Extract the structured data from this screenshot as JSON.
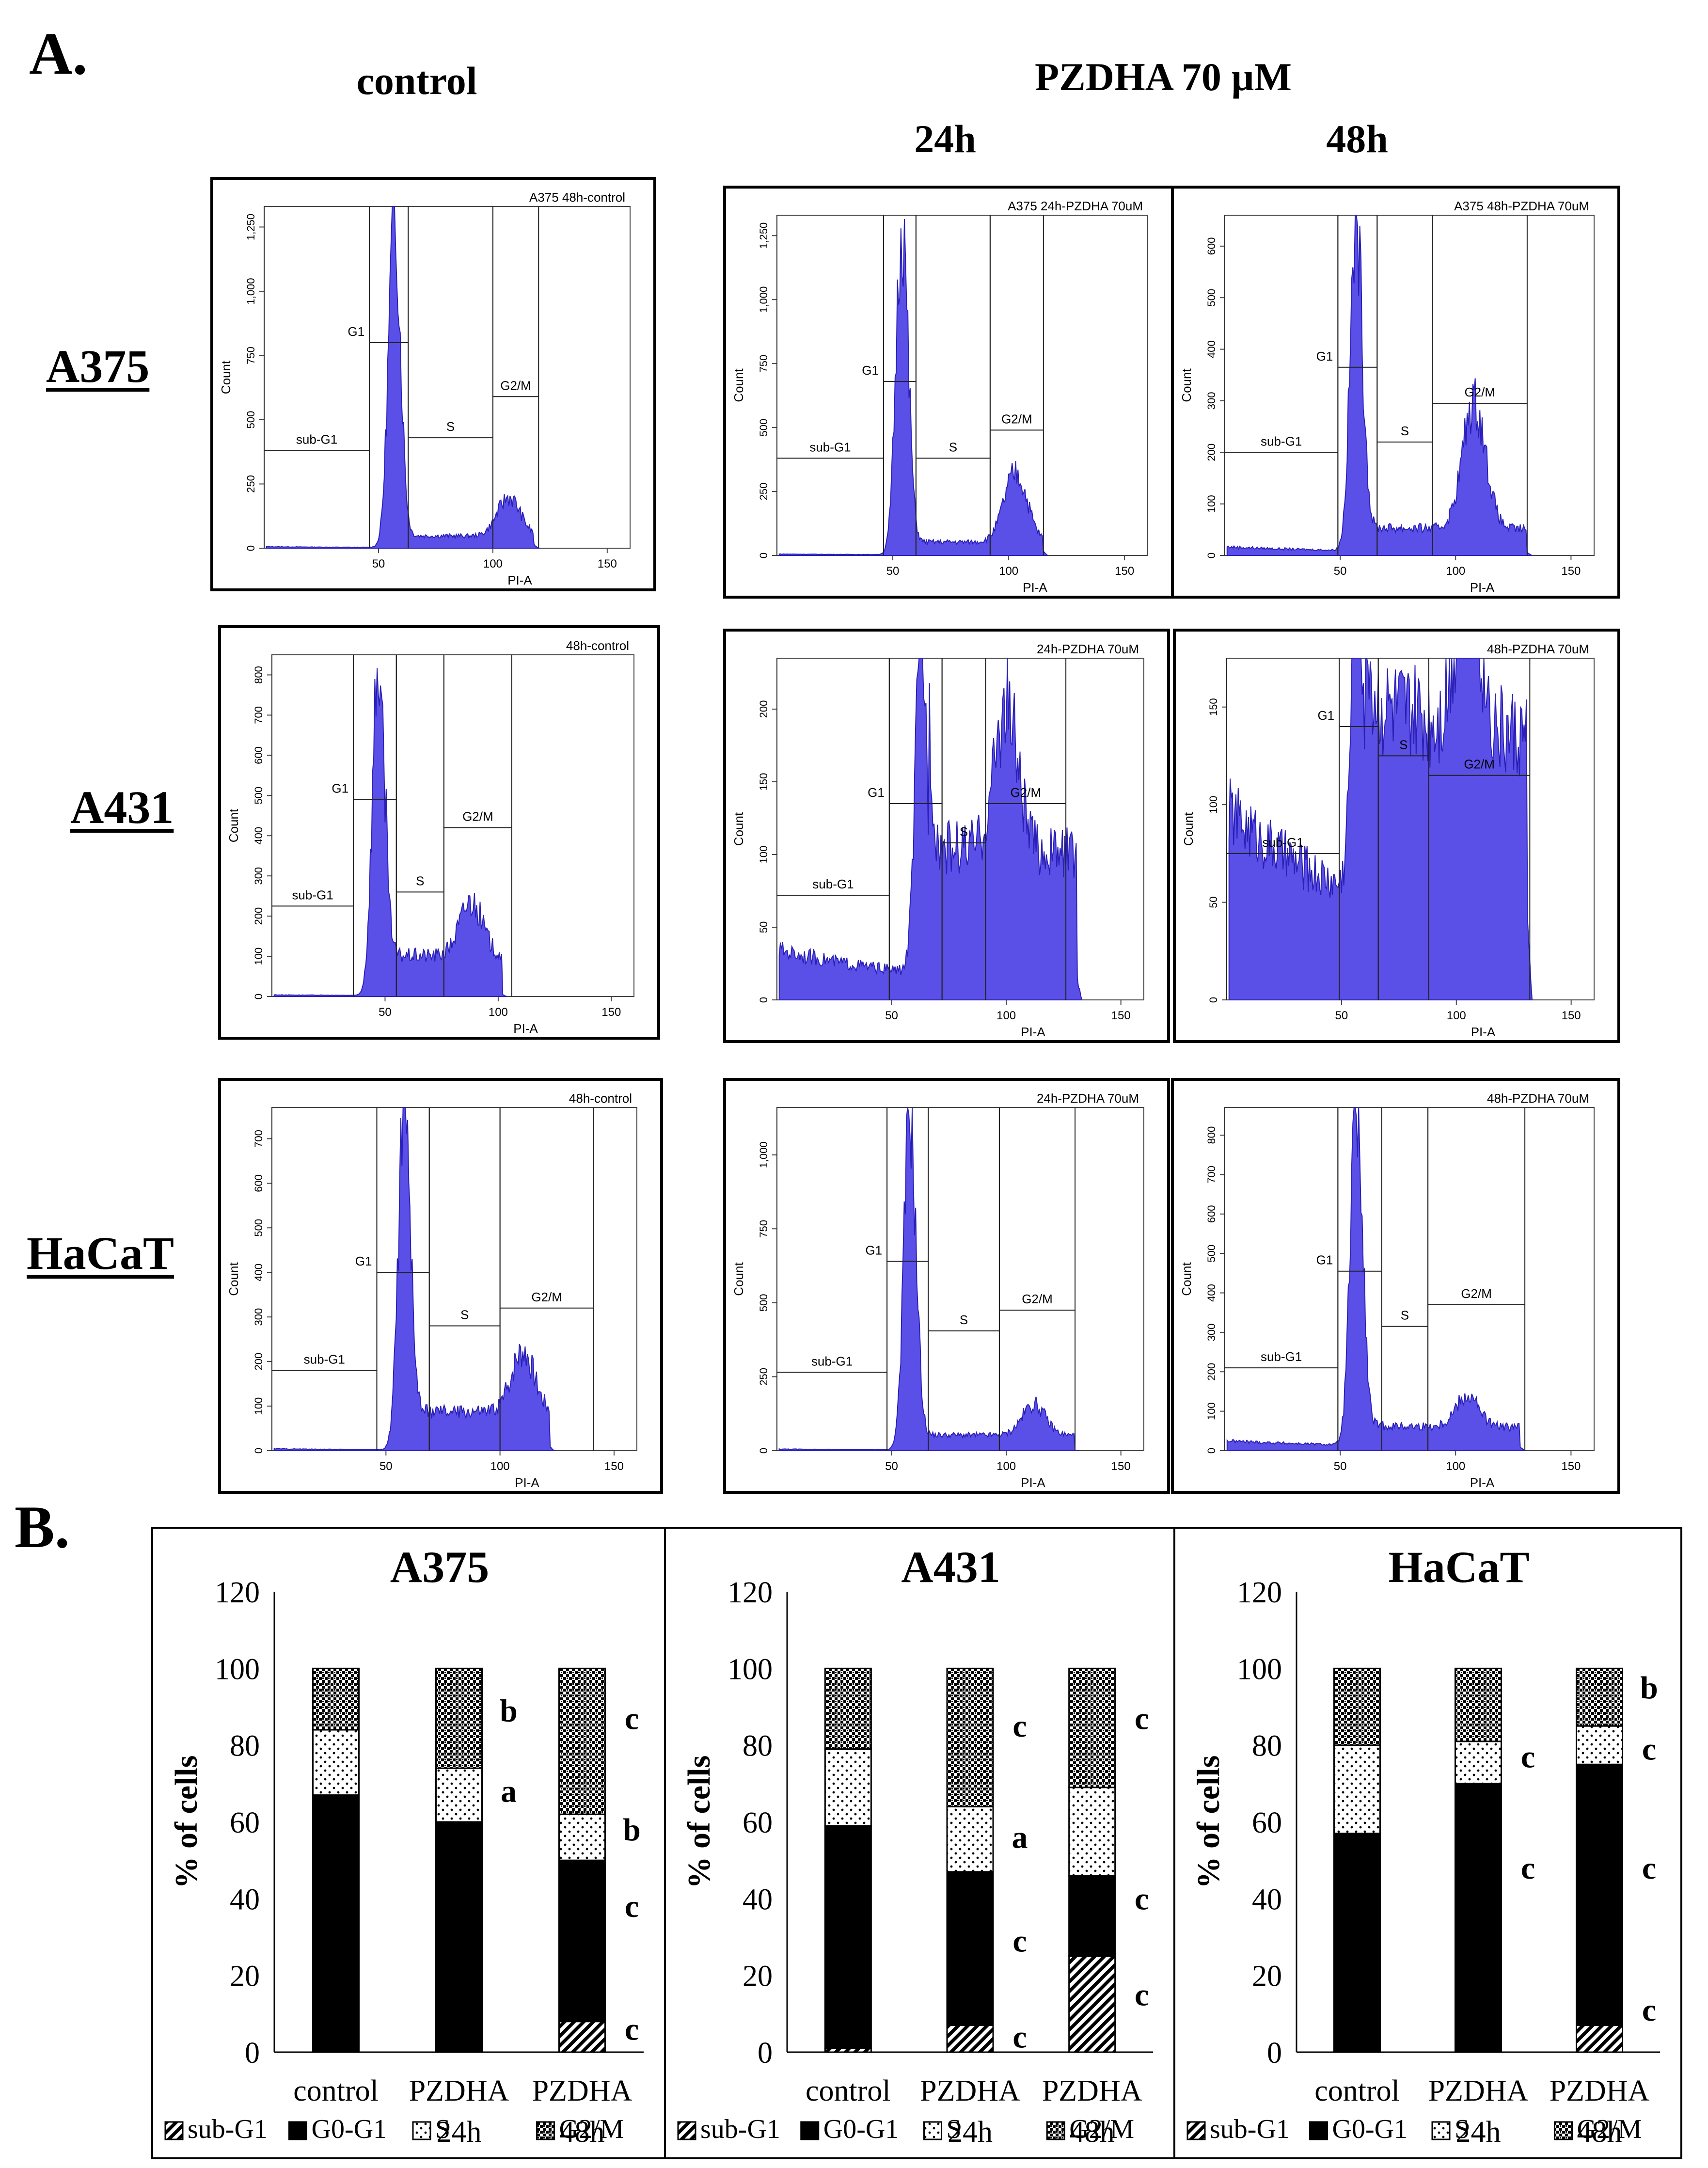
{
  "panel_labels": {
    "a": "A.",
    "b": "B."
  },
  "headers": {
    "control": "control",
    "treatment": "PZDHA 70 µM",
    "t24": "24h",
    "t48": "48h"
  },
  "row_labels": [
    "A375",
    "A431",
    "HaCaT"
  ],
  "colors": {
    "histogram_fill": "#5a4fe6",
    "histogram_stroke": "#2a20b8"
  },
  "chart_data": [
    {
      "type": "area",
      "cell_line": "A375",
      "condition": "control",
      "title": "A375 48h-control",
      "xlabel": "PI-A",
      "ylabel": "Count",
      "xlim": [
        0,
        160
      ],
      "ylim": [
        0,
        1330
      ],
      "xticks": [
        50,
        100,
        150
      ],
      "yticks": [
        0,
        250,
        500,
        750,
        1000,
        1250
      ],
      "ytick_labels": [
        "0",
        "250",
        "500",
        "750",
        "1,000",
        "1,250"
      ],
      "gates": [
        {
          "label": "sub-G1",
          "x": [
            0,
            46
          ],
          "y": 380
        },
        {
          "label": "G1",
          "x": [
            46,
            63
          ],
          "y": 800
        },
        {
          "label": "S",
          "x": [
            63,
            100
          ],
          "y": 430
        },
        {
          "label": "G2/M",
          "x": [
            100,
            120
          ],
          "y": 590
        }
      ],
      "peaks": {
        "g1": 57,
        "g1h": 1300,
        "s": 45,
        "g2": 107,
        "g2h": 150,
        "sub": 4,
        "end": 118
      }
    },
    {
      "type": "area",
      "cell_line": "A375",
      "condition": "PZDHA 70 µM 24h",
      "title": "A375 24h-PZDHA 70uM",
      "xlabel": "PI-A",
      "ylabel": "Count",
      "xlim": [
        0,
        160
      ],
      "ylim": [
        0,
        1330
      ],
      "xticks": [
        50,
        100,
        150
      ],
      "yticks": [
        0,
        250,
        500,
        750,
        1000,
        1250
      ],
      "ytick_labels": [
        "0",
        "250",
        "500",
        "750",
        "1,000",
        "1,250"
      ],
      "gates": [
        {
          "label": "sub-G1",
          "x": [
            0,
            46
          ],
          "y": 380
        },
        {
          "label": "G1",
          "x": [
            46,
            60
          ],
          "y": 680
        },
        {
          "label": "S",
          "x": [
            60,
            92
          ],
          "y": 380
        },
        {
          "label": "G2/M",
          "x": [
            92,
            115
          ],
          "y": 490
        }
      ],
      "peaks": {
        "g1": 54,
        "g1h": 1300,
        "s": 50,
        "g2": 103,
        "g2h": 270,
        "sub": 4,
        "end": 115
      }
    },
    {
      "type": "area",
      "cell_line": "A375",
      "condition": "PZDHA 70 µM 48h",
      "title": "A375 48h-PZDHA 70uM",
      "xlabel": "PI-A",
      "ylabel": "Count",
      "xlim": [
        0,
        160
      ],
      "ylim": [
        0,
        660
      ],
      "xticks": [
        50,
        100,
        150
      ],
      "yticks": [
        0,
        100,
        200,
        300,
        400,
        500,
        600
      ],
      "ytick_labels": [
        "0",
        "100",
        "200",
        "300",
        "400",
        "500",
        "600"
      ],
      "gates": [
        {
          "label": "sub-G1",
          "x": [
            0,
            49
          ],
          "y": 200
        },
        {
          "label": "G1",
          "x": [
            49,
            66
          ],
          "y": 365
        },
        {
          "label": "S",
          "x": [
            66,
            90
          ],
          "y": 220
        },
        {
          "label": "G2/M",
          "x": [
            90,
            131
          ],
          "y": 295
        }
      ],
      "peaks": {
        "g1": 57,
        "g1h": 650,
        "s": 45,
        "g2": 108,
        "g2h": 245,
        "sub": 12,
        "end": 131
      }
    },
    {
      "type": "area",
      "cell_line": "A431",
      "condition": "control",
      "title": "48h-control",
      "xlabel": "PI-A",
      "ylabel": "Count",
      "xlim": [
        0,
        160
      ],
      "ylim": [
        0,
        850
      ],
      "xticks": [
        50,
        100,
        150
      ],
      "yticks": [
        0,
        100,
        200,
        300,
        400,
        500,
        600,
        700,
        800
      ],
      "ytick_labels": [
        "0",
        "100",
        "200",
        "300",
        "400",
        "500",
        "600",
        "700",
        "800"
      ],
      "gates": [
        {
          "label": "sub-G1",
          "x": [
            0,
            36
          ],
          "y": 225
        },
        {
          "label": "G1",
          "x": [
            36,
            55
          ],
          "y": 490
        },
        {
          "label": "S",
          "x": [
            55,
            76
          ],
          "y": 260
        },
        {
          "label": "G2/M",
          "x": [
            76,
            106
          ],
          "y": 420
        }
      ],
      "peaks": {
        "g1": 47,
        "g1h": 830,
        "s": 100,
        "g2": 88,
        "g2h": 135,
        "sub": 3,
        "end": 102
      }
    },
    {
      "type": "area",
      "cell_line": "A431",
      "condition": "PZDHA 70 µM 24h",
      "title": "24h-PZDHA 70uM",
      "xlabel": "PI-A",
      "ylabel": "Count",
      "xlim": [
        0,
        160
      ],
      "ylim": [
        0,
        235
      ],
      "xticks": [
        50,
        100,
        150
      ],
      "yticks": [
        0,
        50,
        100,
        150,
        200
      ],
      "ytick_labels": [
        "0",
        "50",
        "100",
        "150",
        "200"
      ],
      "gates": [
        {
          "label": "sub-G1",
          "x": [
            0,
            49
          ],
          "y": 72
        },
        {
          "label": "G1",
          "x": [
            49,
            72
          ],
          "y": 135
        },
        {
          "label": "S",
          "x": [
            72,
            91
          ],
          "y": 108
        },
        {
          "label": "G2/M",
          "x": [
            91,
            126
          ],
          "y": 135
        }
      ],
      "peaks": {
        "g1": 63,
        "g1h": 228,
        "s": 88,
        "g2": 100,
        "g2h": 100,
        "sub": 25,
        "end": 131
      }
    },
    {
      "type": "area",
      "cell_line": "A431",
      "condition": "PZDHA 70 µM 48h",
      "title": "48h-PZDHA 70uM",
      "xlabel": "PI-A",
      "ylabel": "Count",
      "xlim": [
        0,
        160
      ],
      "ylim": [
        0,
        175
      ],
      "xticks": [
        50,
        100,
        150
      ],
      "yticks": [
        0,
        50,
        100,
        150
      ],
      "ytick_labels": [
        "0",
        "50",
        "100",
        "150"
      ],
      "gates": [
        {
          "label": "sub-G1",
          "x": [
            0,
            49
          ],
          "y": 75
        },
        {
          "label": "G1",
          "x": [
            49,
            66
          ],
          "y": 140
        },
        {
          "label": "S",
          "x": [
            66,
            88
          ],
          "y": 125
        },
        {
          "label": "G2/M",
          "x": [
            88,
            132
          ],
          "y": 115
        }
      ],
      "peaks": {
        "g1": 57,
        "g1h": 170,
        "s": 100,
        "g2": 105,
        "g2h": 90,
        "sub": 70,
        "end": 131
      }
    },
    {
      "type": "area",
      "cell_line": "HaCaT",
      "condition": "control",
      "title": "48h-control",
      "xlabel": "PI-A",
      "ylabel": "Count",
      "xlim": [
        0,
        160
      ],
      "ylim": [
        0,
        770
      ],
      "xticks": [
        50,
        100,
        150
      ],
      "yticks": [
        0,
        100,
        200,
        300,
        400,
        500,
        600,
        700
      ],
      "ytick_labels": [
        "0",
        "100",
        "200",
        "300",
        "400",
        "500",
        "600",
        "700"
      ],
      "gates": [
        {
          "label": "sub-G1",
          "x": [
            0,
            46
          ],
          "y": 180
        },
        {
          "label": "G1",
          "x": [
            46,
            69
          ],
          "y": 400
        },
        {
          "label": "S",
          "x": [
            69,
            100
          ],
          "y": 280
        },
        {
          "label": "G2/M",
          "x": [
            100,
            141
          ],
          "y": 320
        }
      ],
      "peaks": {
        "g1": 58,
        "g1h": 760,
        "s": 85,
        "g2": 110,
        "g2h": 140,
        "sub": 3,
        "end": 122
      }
    },
    {
      "type": "area",
      "cell_line": "HaCaT",
      "condition": "PZDHA 70 µM 24h",
      "title": "24h-PZDHA 70uM",
      "xlabel": "PI-A",
      "ylabel": "Count",
      "xlim": [
        0,
        160
      ],
      "ylim": [
        0,
        1160
      ],
      "xticks": [
        50,
        100,
        150
      ],
      "yticks": [
        0,
        250,
        500,
        750,
        1000
      ],
      "ytick_labels": [
        "0",
        "250",
        "500",
        "750",
        "1,000"
      ],
      "gates": [
        {
          "label": "sub-G1",
          "x": [
            0,
            48
          ],
          "y": 265
        },
        {
          "label": "G1",
          "x": [
            48,
            66
          ],
          "y": 640
        },
        {
          "label": "S",
          "x": [
            66,
            97
          ],
          "y": 405
        },
        {
          "label": "G2/M",
          "x": [
            97,
            130
          ],
          "y": 475
        }
      ],
      "peaks": {
        "g1": 58,
        "g1h": 1150,
        "s": 50,
        "g2": 112,
        "g2h": 105,
        "sub": 4,
        "end": 130
      }
    },
    {
      "type": "area",
      "cell_line": "HaCaT",
      "condition": "PZDHA 70 µM 48h",
      "title": "48h-PZDHA 70uM",
      "xlabel": "PI-A",
      "ylabel": "Count",
      "xlim": [
        0,
        160
      ],
      "ylim": [
        0,
        870
      ],
      "xticks": [
        50,
        100,
        150
      ],
      "yticks": [
        0,
        100,
        200,
        300,
        400,
        500,
        600,
        700,
        800
      ],
      "ytick_labels": [
        "0",
        "100",
        "200",
        "300",
        "400",
        "500",
        "600",
        "700",
        "800"
      ],
      "gates": [
        {
          "label": "sub-G1",
          "x": [
            0,
            49
          ],
          "y": 210
        },
        {
          "label": "G1",
          "x": [
            49,
            68
          ],
          "y": 455
        },
        {
          "label": "S",
          "x": [
            68,
            88
          ],
          "y": 315
        },
        {
          "label": "G2/M",
          "x": [
            88,
            130
          ],
          "y": 370
        }
      ],
      "peaks": {
        "g1": 57,
        "g1h": 860,
        "s": 50,
        "g2": 105,
        "g2h": 80,
        "sub": 18,
        "end": 128
      }
    },
    {
      "type": "bar",
      "stacked": true,
      "title": "A375",
      "categories": [
        "control",
        "PZDHA 24h",
        "PZDHA 48h"
      ],
      "ylabel": "% of cells",
      "ylim": [
        0,
        120
      ],
      "yticks": [
        0,
        20,
        40,
        60,
        80,
        100,
        120
      ],
      "series": [
        {
          "name": "sub-G1",
          "values": [
            0,
            0,
            8
          ],
          "pattern": "diag"
        },
        {
          "name": "G0-G1",
          "values": [
            67,
            60,
            42
          ],
          "pattern": "solid"
        },
        {
          "name": "S",
          "values": [
            17,
            14,
            12
          ],
          "pattern": "dots"
        },
        {
          "name": "G2/M",
          "values": [
            16,
            26,
            38
          ],
          "pattern": "check"
        }
      ],
      "annotations": [
        {
          "category": 1,
          "y": 89,
          "text": "b"
        },
        {
          "category": 1,
          "y": 68,
          "text": "a"
        },
        {
          "category": 2,
          "y": 87,
          "text": "c"
        },
        {
          "category": 2,
          "y": 58,
          "text": "b"
        },
        {
          "category": 2,
          "y": 38,
          "text": "c"
        },
        {
          "category": 2,
          "y": 6,
          "text": "c"
        }
      ]
    },
    {
      "type": "bar",
      "stacked": true,
      "title": "A431",
      "categories": [
        "control",
        "PZDHA 24h",
        "PZDHA 48h"
      ],
      "ylabel": "% of cells",
      "ylim": [
        0,
        120
      ],
      "yticks": [
        0,
        20,
        40,
        60,
        80,
        100,
        120
      ],
      "series": [
        {
          "name": "sub-G1",
          "values": [
            1,
            7,
            25
          ],
          "pattern": "diag"
        },
        {
          "name": "G0-G1",
          "values": [
            58,
            40,
            21
          ],
          "pattern": "solid"
        },
        {
          "name": "S",
          "values": [
            20,
            17,
            23
          ],
          "pattern": "dots"
        },
        {
          "name": "G2/M",
          "values": [
            21,
            36,
            31
          ],
          "pattern": "check"
        }
      ],
      "annotations": [
        {
          "category": 1,
          "y": 85,
          "text": "c"
        },
        {
          "category": 1,
          "y": 56,
          "text": "a"
        },
        {
          "category": 1,
          "y": 29,
          "text": "c"
        },
        {
          "category": 1,
          "y": 4,
          "text": "c"
        },
        {
          "category": 2,
          "y": 87,
          "text": "c"
        },
        {
          "category": 2,
          "y": 40,
          "text": "c"
        },
        {
          "category": 2,
          "y": 15,
          "text": "c"
        }
      ]
    },
    {
      "type": "bar",
      "stacked": true,
      "title": "HaCaT",
      "categories": [
        "control",
        "PZDHA 24h",
        "PZDHA 48h"
      ],
      "ylabel": "% of cells",
      "ylim": [
        0,
        120
      ],
      "yticks": [
        0,
        20,
        40,
        60,
        80,
        100,
        120
      ],
      "series": [
        {
          "name": "sub-G1",
          "values": [
            0,
            0,
            7
          ],
          "pattern": "diag"
        },
        {
          "name": "G0-G1",
          "values": [
            57,
            70,
            68
          ],
          "pattern": "solid"
        },
        {
          "name": "S",
          "values": [
            23,
            11,
            10
          ],
          "pattern": "dots"
        },
        {
          "name": "G2/M",
          "values": [
            20,
            19,
            15
          ],
          "pattern": "check"
        }
      ],
      "annotations": [
        {
          "category": 1,
          "y": 77,
          "text": "c"
        },
        {
          "category": 1,
          "y": 48,
          "text": "c"
        },
        {
          "category": 2,
          "y": 95,
          "text": "b"
        },
        {
          "category": 2,
          "y": 79,
          "text": "c"
        },
        {
          "category": 2,
          "y": 48,
          "text": "c"
        },
        {
          "category": 2,
          "y": 11,
          "text": "c"
        }
      ]
    }
  ]
}
